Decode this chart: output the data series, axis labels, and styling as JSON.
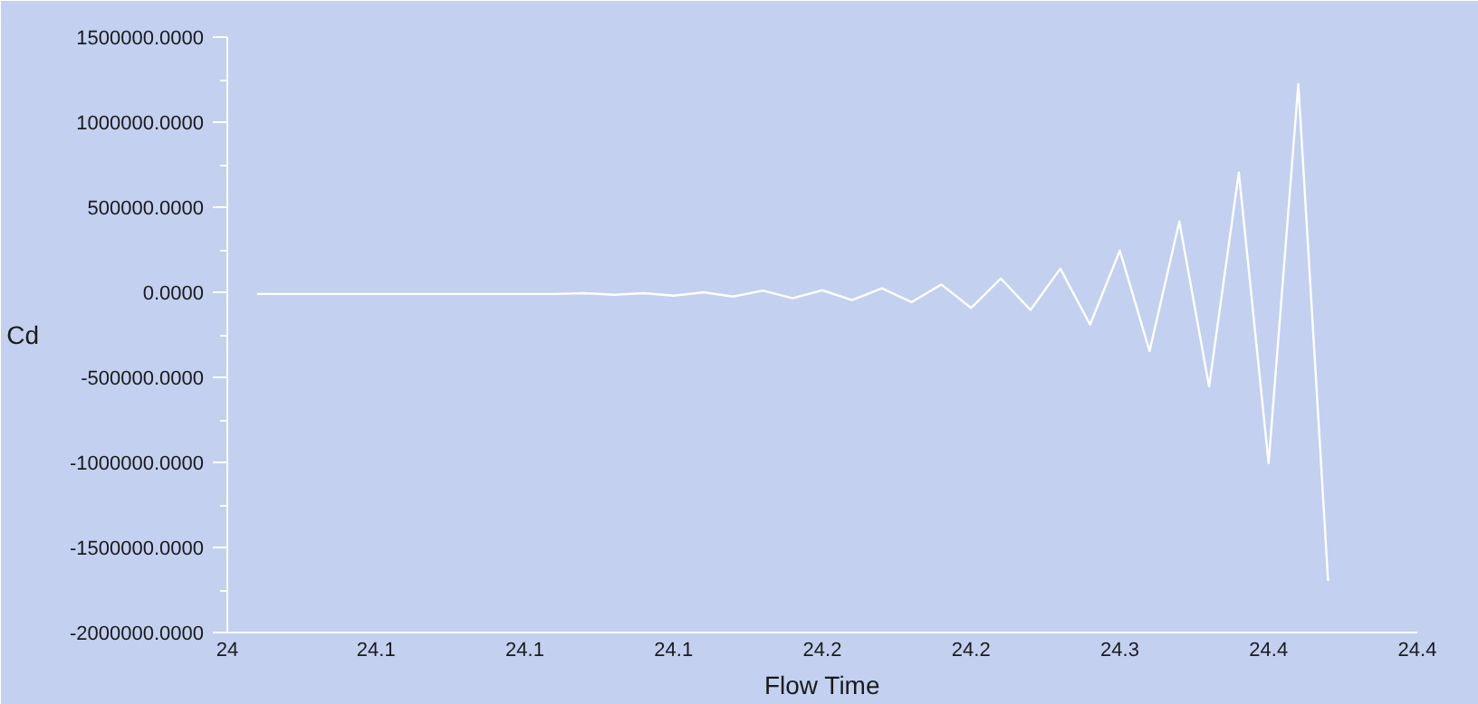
{
  "chart_data": {
    "type": "line",
    "xlabel": "Flow Time",
    "ylabel": "Cd",
    "x": [
      24.01,
      24.02,
      24.03,
      24.04,
      24.05,
      24.06,
      24.07,
      24.08,
      24.09,
      24.1,
      24.11,
      24.12,
      24.13,
      24.14,
      24.15,
      24.16,
      24.17,
      24.18,
      24.19,
      24.2,
      24.21,
      24.22,
      24.23,
      24.24,
      24.25,
      24.26,
      24.27,
      24.28,
      24.29,
      24.3,
      24.31,
      24.32,
      24.33,
      24.34,
      24.35,
      24.36,
      24.37
    ],
    "series": [
      {
        "color": "#ffffff",
        "values": [
          -10000,
          -10000,
          -10000,
          -10000,
          -10000,
          -10000,
          -10000,
          -10000,
          -10000,
          -10000,
          -10000,
          -5000,
          -15000,
          -5000,
          -20000,
          0,
          -25000,
          10000,
          -35000,
          12000,
          -46000,
          23000,
          -58000,
          46000,
          -92000,
          81000,
          -104000,
          139000,
          -190000,
          245000,
          -346000,
          416000,
          -554000,
          704000,
          -1005000,
          1224000,
          -1697000
        ]
      }
    ],
    "xlim": [
      24,
      24.4
    ],
    "xticks": [
      {
        "value": 24,
        "label": "24"
      },
      {
        "value": 24.05,
        "label": "24.1"
      },
      {
        "value": 24.1,
        "label": "24.1"
      },
      {
        "value": 24.15,
        "label": "24.1"
      },
      {
        "value": 24.2,
        "label": "24.2"
      },
      {
        "value": 24.25,
        "label": "24.2"
      },
      {
        "value": 24.3,
        "label": "24.3"
      },
      {
        "value": 24.35,
        "label": "24.4"
      },
      {
        "value": 24.4,
        "label": "24.4"
      }
    ],
    "ylim": [
      -2000000,
      1500000
    ],
    "yticks": [
      {
        "value": -2000000,
        "label": "-2000000.0000"
      },
      {
        "value": -1500000,
        "label": "-1500000.0000"
      },
      {
        "value": -1000000,
        "label": "-1000000.0000"
      },
      {
        "value": -500000,
        "label": "-500000.0000"
      },
      {
        "value": 0,
        "label": "0.0000"
      },
      {
        "value": 500000,
        "label": "500000.0000"
      },
      {
        "value": 1000000,
        "label": "1000000.0000"
      },
      {
        "value": 1500000,
        "label": "1500000.0000"
      }
    ],
    "grid": false,
    "legend": false,
    "marker": "none",
    "line_style": "solid"
  }
}
